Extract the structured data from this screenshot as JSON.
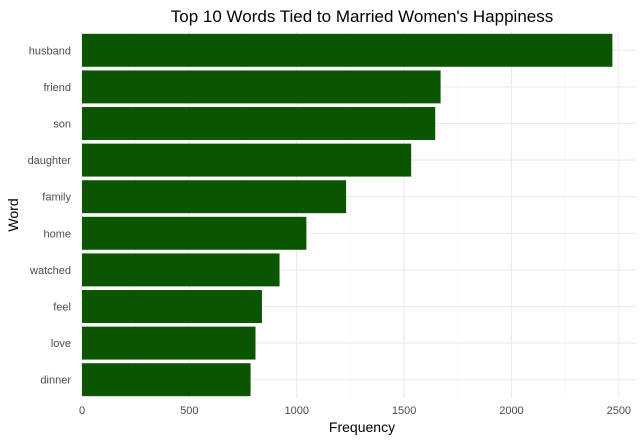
{
  "chart_data": {
    "type": "bar",
    "orientation": "horizontal",
    "title": "Top 10 Words Tied to Married Women's Happiness",
    "xlabel": "Frequency",
    "ylabel": "Word",
    "categories": [
      "husband",
      "friend",
      "son",
      "daughter",
      "family",
      "home",
      "watched",
      "feel",
      "love",
      "dinner"
    ],
    "values": [
      2470,
      1670,
      1645,
      1533,
      1230,
      1045,
      920,
      838,
      808,
      785
    ],
    "xlim": [
      0,
      2580
    ],
    "xticks": [
      0,
      500,
      1000,
      1500,
      2000,
      2500
    ],
    "grid": true,
    "legend": "none",
    "bar_color": "#0b5400",
    "theme": "minimal"
  }
}
